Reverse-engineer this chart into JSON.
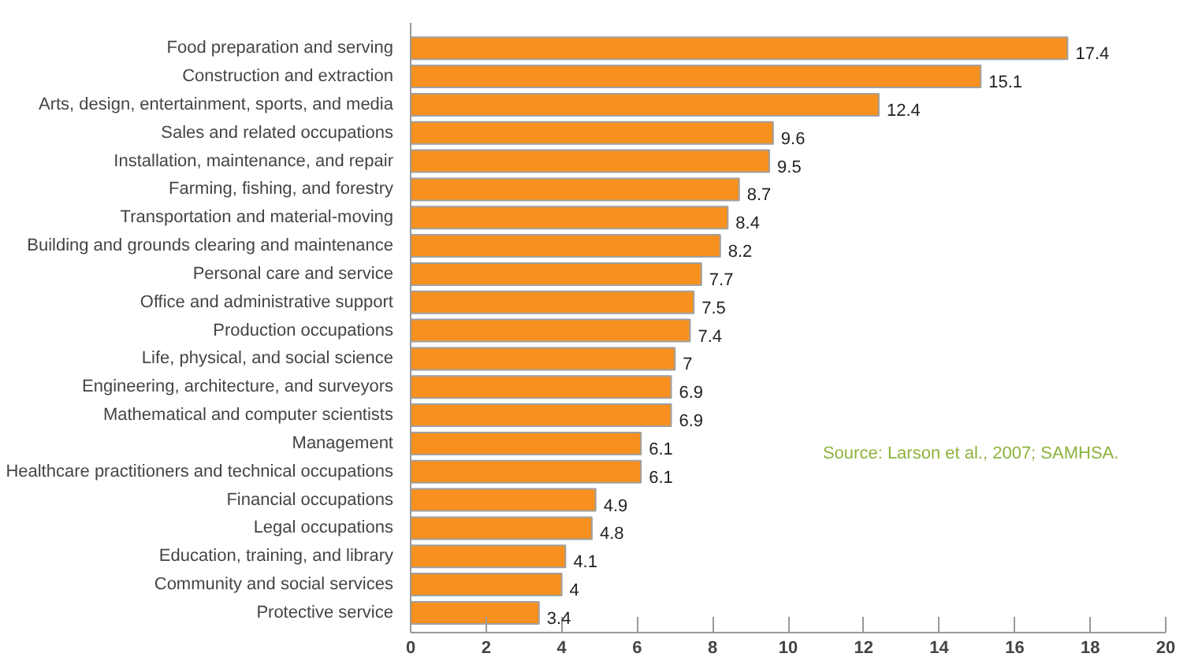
{
  "chart_data": {
    "type": "bar",
    "orientation": "horizontal",
    "color": "#f7901e",
    "data_labels": true,
    "grid": false,
    "categories": [
      "Food preparation and serving",
      "Construction and extraction",
      "Arts, design, entertainment, sports, and media",
      "Sales and related occupations",
      "Installation, maintenance, and repair",
      "Farming, fishing, and forestry",
      "Transportation and material-moving",
      "Building and grounds clearing and maintenance",
      "Personal care and service",
      "Office and administrative support",
      "Production occupations",
      "Life, physical, and social science",
      "Engineering, architecture, and surveyors",
      "Mathematical and computer scientists",
      "Management",
      "Healthcare practitioners and technical occupations",
      "Financial occupations",
      "Legal occupations",
      "Education, training, and library",
      "Community and social services",
      "Protective service"
    ],
    "values": [
      17.4,
      15.1,
      12.4,
      9.6,
      9.5,
      8.7,
      8.4,
      8.2,
      7.7,
      7.5,
      7.4,
      7,
      6.9,
      6.9,
      6.1,
      6.1,
      4.9,
      4.8,
      4.1,
      4,
      3.4
    ],
    "xlim": [
      0,
      20
    ],
    "xticks": [
      0,
      2,
      4,
      6,
      8,
      10,
      12,
      14,
      16,
      18,
      20
    ],
    "annotations": [
      "Source:  Larson et al., 2007; SAMHSA."
    ]
  }
}
